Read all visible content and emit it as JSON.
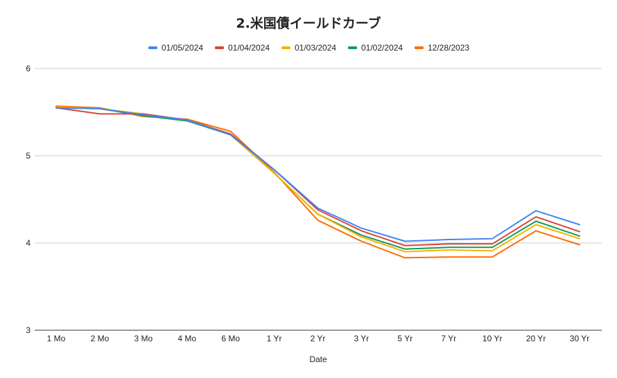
{
  "chart_data": {
    "type": "line",
    "title": "2.米国債イールドカーブ",
    "xlabel": "Date",
    "ylabel": "",
    "ylim": [
      3,
      6
    ],
    "yticks": [
      3,
      4,
      5,
      6
    ],
    "grid": true,
    "legend_position": "top",
    "categories": [
      "1 Mo",
      "2 Mo",
      "3 Mo",
      "4 Mo",
      "6 Mo",
      "1 Yr",
      "2 Yr",
      "3 Yr",
      "5 Yr",
      "7 Yr",
      "10 Yr",
      "20 Yr",
      "30 Yr"
    ],
    "series": [
      {
        "name": "01/05/2024",
        "color": "#4285f4",
        "values": [
          5.55,
          5.54,
          5.47,
          5.41,
          5.24,
          4.84,
          4.4,
          4.17,
          4.02,
          4.04,
          4.05,
          4.37,
          4.21
        ]
      },
      {
        "name": "01/04/2024",
        "color": "#db4437",
        "values": [
          5.55,
          5.48,
          5.48,
          5.41,
          5.25,
          4.84,
          4.38,
          4.14,
          3.97,
          3.99,
          3.99,
          4.3,
          4.13
        ]
      },
      {
        "name": "01/03/2024",
        "color": "#f4b400",
        "values": [
          5.56,
          5.54,
          5.48,
          5.41,
          5.24,
          4.8,
          4.33,
          4.07,
          3.9,
          3.92,
          3.91,
          4.21,
          4.05
        ]
      },
      {
        "name": "01/02/2024",
        "color": "#0f9d58",
        "values": [
          5.55,
          5.54,
          5.46,
          5.4,
          5.24,
          4.8,
          4.33,
          4.09,
          3.93,
          3.95,
          3.95,
          4.25,
          4.08
        ]
      },
      {
        "name": "12/28/2023",
        "color": "#ff6d00",
        "values": [
          5.57,
          5.55,
          5.45,
          5.42,
          5.28,
          4.81,
          4.26,
          4.02,
          3.83,
          3.84,
          3.84,
          4.14,
          3.98
        ]
      }
    ]
  }
}
